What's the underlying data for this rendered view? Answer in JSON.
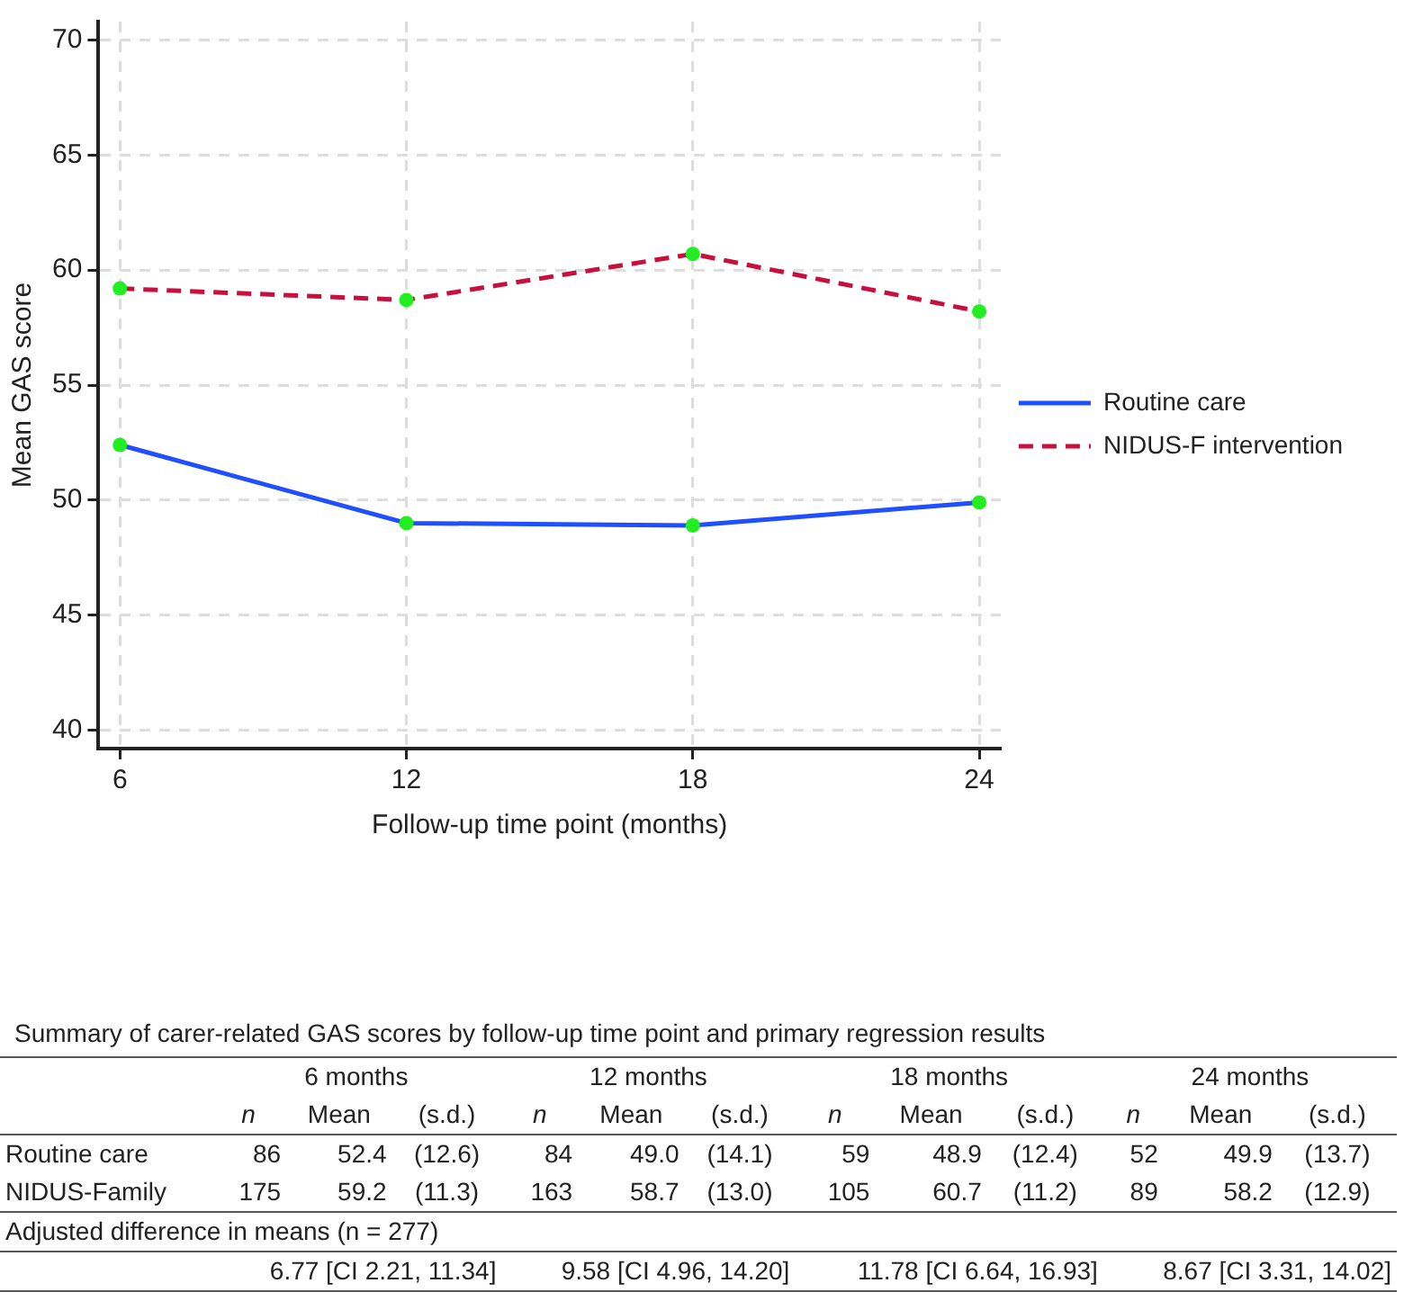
{
  "chart_data": [
    {
      "type": "line",
      "xlabel": "Follow-up time point (months)",
      "ylabel": "Mean GAS score",
      "x": [
        6,
        12,
        18,
        24
      ],
      "xlim": [
        5.55,
        24.45
      ],
      "xticks": [
        6,
        12,
        18,
        24
      ],
      "ylim": [
        39.2,
        70.8
      ],
      "yticks": [
        40,
        45,
        50,
        55,
        60,
        65,
        70
      ],
      "grid": true,
      "legend": "right",
      "marker": "circle",
      "data_labels": false,
      "series": [
        {
          "name": "Routine care",
          "color": "#1f4fff",
          "line_style": "solid",
          "values": [
            52.4,
            49.0,
            48.9,
            49.9
          ],
          "value_labels": [
            "52.4",
            "49.0",
            "48.9",
            "49.9"
          ]
        },
        {
          "name": "NIDUS-F intervention",
          "color": "#c8103e",
          "line_style": "dashed",
          "values": [
            59.2,
            58.7,
            60.7,
            58.2
          ],
          "value_labels": [
            "59.2",
            "58.7",
            "60.7",
            "58.2"
          ]
        }
      ]
    },
    {
      "type": "other",
      "title": "Summary of carer-related GAS scores by follow-up time point and primary regression results",
      "categories": [
        "6 months",
        "12 months",
        "18 months",
        "24 months"
      ],
      "y_categories": [
        "Routine care",
        "NIDUS-Family"
      ],
      "cell_labels": [
        [
          "86",
          "(12.6)",
          "84",
          "(14.1)",
          "59",
          "(12.4)",
          "52",
          "(13.7)"
        ],
        [
          "175",
          "(11.3)",
          "163",
          "(13.0)",
          "105",
          "(11.2)",
          "89",
          "(12.9)"
        ]
      ],
      "annotations": [
        "n",
        "Mean",
        "(s.d.)",
        "Adjusted difference in means (n = 277)",
        "6.77 [CI 2.21, 11.34]",
        "9.58 [CI 4.96, 14.20]",
        "11.78 [CI 6.64, 16.93]",
        "8.67 [CI 3.31, 14.02]"
      ]
    }
  ]
}
